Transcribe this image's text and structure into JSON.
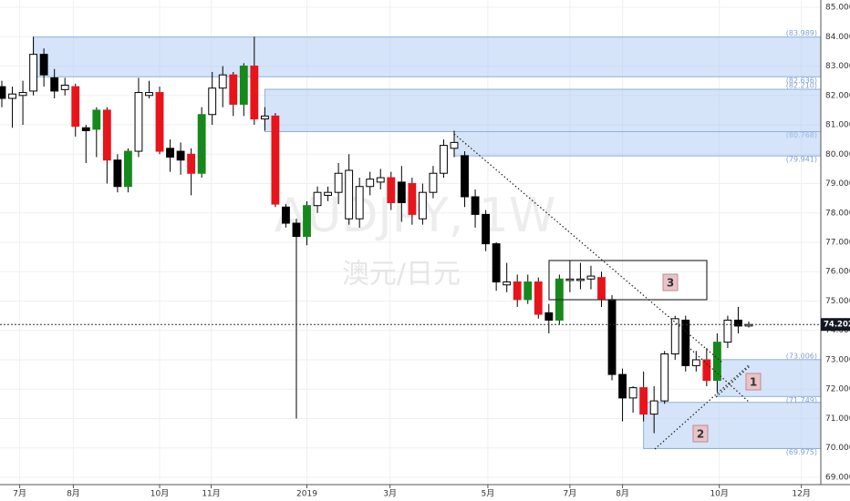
{
  "chart_data": {
    "type": "candlestick",
    "title": "AUDJPY, 1W",
    "subtitle": "澳元/日元",
    "open": [
      82.3,
      81.9,
      82.0,
      82.15,
      83.4,
      82.6,
      82.2,
      82.3,
      80.9,
      80.85,
      81.5,
      79.8,
      78.9,
      80.1,
      82.0,
      82.1,
      80.2,
      80.1,
      80.0,
      79.35,
      81.35,
      82.25,
      82.7,
      81.7,
      83.0,
      81.2,
      81.3,
      78.2,
      77.65,
      77.2,
      78.25,
      78.6,
      78.7,
      77.8,
      77.8,
      78.9,
      79.05,
      79.2,
      79.05,
      79.0,
      77.8,
      78.7,
      79.35,
      80.2,
      79.95,
      78.55,
      77.95,
      76.95,
      75.55,
      75.65,
      75.05,
      75.65,
      74.6,
      74.35,
      75.7,
      75.7,
      75.75,
      75.8,
      75.05,
      72.5,
      71.7,
      72.05,
      71.15,
      71.6,
      73.2,
      74.35,
      72.8,
      73.0,
      72.3,
      73.6,
      74.35,
      74.15
    ],
    "high": [
      82.5,
      82.3,
      82.5,
      84.0,
      83.6,
      82.9,
      82.6,
      82.4,
      81.0,
      81.6,
      81.6,
      80.0,
      80.2,
      82.6,
      82.5,
      82.3,
      80.5,
      80.4,
      80.2,
      81.6,
      82.8,
      83.0,
      82.8,
      83.1,
      84.0,
      81.6,
      81.4,
      78.3,
      77.8,
      78.4,
      78.9,
      78.9,
      79.7,
      80.0,
      79.2,
      79.4,
      79.5,
      79.4,
      79.6,
      79.2,
      79.0,
      79.6,
      80.5,
      80.8,
      80.1,
      78.8,
      78.1,
      77.0,
      76.3,
      75.9,
      75.9,
      75.8,
      74.9,
      75.9,
      76.4,
      76.3,
      76.2,
      76.0,
      75.2,
      72.7,
      72.1,
      72.6,
      72.1,
      73.3,
      74.5,
      74.5,
      73.3,
      73.4,
      73.9,
      74.5,
      74.8,
      74.3
    ],
    "low": [
      81.6,
      80.9,
      81.0,
      82.0,
      82.3,
      81.9,
      82.0,
      80.6,
      79.7,
      79.9,
      79.0,
      78.7,
      78.7,
      79.9,
      81.9,
      80.0,
      79.4,
      79.3,
      78.6,
      79.2,
      81.0,
      81.6,
      81.3,
      81.3,
      81.0,
      80.8,
      78.2,
      77.5,
      71.0,
      76.9,
      78.0,
      78.4,
      78.3,
      77.6,
      77.5,
      78.6,
      78.8,
      78.1,
      77.7,
      77.6,
      77.6,
      78.5,
      79.2,
      79.9,
      78.2,
      77.5,
      76.7,
      75.35,
      75.3,
      74.8,
      74.9,
      74.4,
      73.9,
      74.2,
      75.3,
      75.4,
      75.4,
      74.8,
      72.3,
      70.9,
      71.2,
      70.9,
      70.5,
      71.5,
      73.0,
      72.6,
      72.6,
      72.1,
      71.9,
      73.4,
      73.9,
      74.1
    ],
    "close": [
      81.9,
      82.05,
      82.1,
      83.4,
      82.7,
      82.15,
      82.35,
      80.95,
      80.8,
      81.5,
      79.8,
      78.9,
      80.1,
      82.1,
      82.1,
      80.1,
      79.9,
      79.8,
      79.35,
      81.35,
      82.25,
      82.7,
      81.7,
      83.0,
      81.2,
      81.3,
      78.3,
      77.65,
      77.2,
      78.25,
      78.7,
      78.7,
      79.35,
      79.45,
      78.9,
      79.15,
      79.2,
      78.35,
      78.35,
      77.95,
      78.7,
      79.35,
      80.3,
      80.4,
      78.55,
      77.95,
      76.95,
      75.65,
      75.65,
      75.05,
      75.65,
      74.55,
      74.35,
      75.75,
      75.75,
      75.75,
      75.85,
      75.05,
      72.5,
      71.7,
      72.05,
      71.15,
      71.6,
      73.2,
      74.4,
      72.8,
      73.0,
      72.3,
      73.6,
      74.35,
      74.15,
      74.202
    ],
    "colors": [
      "#000000",
      "#ffffff",
      "#ffffff",
      "#ffffff",
      "#000000",
      "#000000",
      "#ffffff",
      "#e8141c",
      "#000000",
      "#17891c",
      "#e8141c",
      "#000000",
      "#17891c",
      "#ffffff",
      "#ffffff",
      "#e8141c",
      "#000000",
      "#000000",
      "#e8141c",
      "#17891c",
      "#ffffff",
      "#ffffff",
      "#e8141c",
      "#17891c",
      "#e8141c",
      "#ffffff",
      "#e8141c",
      "#000000",
      "#000000",
      "#17891c",
      "#ffffff",
      "#ffffff",
      "#ffffff",
      "#ffffff",
      "#ffffff",
      "#ffffff",
      "#ffffff",
      "#e8141c",
      "#000000",
      "#e8141c",
      "#ffffff",
      "#ffffff",
      "#ffffff",
      "#ffffff",
      "#000000",
      "#000000",
      "#000000",
      "#000000",
      "#ffffff",
      "#e8141c",
      "#17891c",
      "#e8141c",
      "#000000",
      "#17891c",
      "#ffffff",
      "#ffffff",
      "#ffffff",
      "#e8141c",
      "#000000",
      "#000000",
      "#ffffff",
      "#e8141c",
      "#ffffff",
      "#ffffff",
      "#ffffff",
      "#000000",
      "#ffffff",
      "#e8141c",
      "#17891c",
      "#ffffff",
      "#000000",
      "#ffffff"
    ],
    "zones": [
      {
        "start": 3,
        "top": 83.989,
        "bottom": 82.636,
        "labels": [
          "(83.989)",
          "(82.636)"
        ]
      },
      {
        "start": 25,
        "top": 82.21,
        "bottom": 80.768,
        "labels": [
          "(82.210)",
          "(80.768)"
        ]
      },
      {
        "start": 43,
        "top": 80.768,
        "bottom": 79.941,
        "labels": [
          "(79.941)"
        ]
      },
      {
        "start": 68,
        "top": 73.006,
        "bottom": 71.749,
        "labels": [
          "(73.006)",
          "(71.749)"
        ]
      },
      {
        "start": 61,
        "top": 71.55,
        "bottom": 69.975,
        "labels": [
          "(69.975)"
        ]
      }
    ],
    "annotations": [
      "1",
      "2",
      "3"
    ],
    "xlim": [
      -0.173,
      77.85
    ],
    "xticks": [
      {
        "value": 1.7,
        "label": "7月"
      },
      {
        "value": 6.8,
        "label": "8月"
      },
      {
        "value": 15,
        "label": "10月"
      },
      {
        "value": 19.9,
        "label": "11月"
      },
      {
        "value": 29,
        "label": "2019"
      },
      {
        "value": 36.9,
        "label": "3月"
      },
      {
        "value": 46.2,
        "label": "5月"
      },
      {
        "value": 54,
        "label": "7月"
      },
      {
        "value": 59,
        "label": "8月"
      },
      {
        "value": 68.2,
        "label": "10月"
      },
      {
        "value": 76,
        "label": "12月"
      }
    ],
    "ylim": [
      68.75,
      85.25
    ],
    "yticks": [
      {
        "value": 69,
        "label": "69.000"
      },
      {
        "value": 70,
        "label": "70.000"
      },
      {
        "value": 71,
        "label": "71.000"
      },
      {
        "value": 72,
        "label": "72.000"
      },
      {
        "value": 73,
        "label": "73.000"
      },
      {
        "value": 74,
        "label": "74.000"
      },
      {
        "value": 75,
        "label": "75.000"
      },
      {
        "value": 76,
        "label": "76.000"
      },
      {
        "value": 77,
        "label": "77.000"
      },
      {
        "value": 78,
        "label": "78.000"
      },
      {
        "value": 79,
        "label": "79.000"
      },
      {
        "value": 80,
        "label": "80.000"
      },
      {
        "value": 81,
        "label": "81.000"
      },
      {
        "value": 82,
        "label": "82.000"
      },
      {
        "value": 83,
        "label": "83.000"
      },
      {
        "value": 84,
        "label": "84.000"
      },
      {
        "value": 85,
        "label": "85.000"
      }
    ],
    "grid": true
  }
}
